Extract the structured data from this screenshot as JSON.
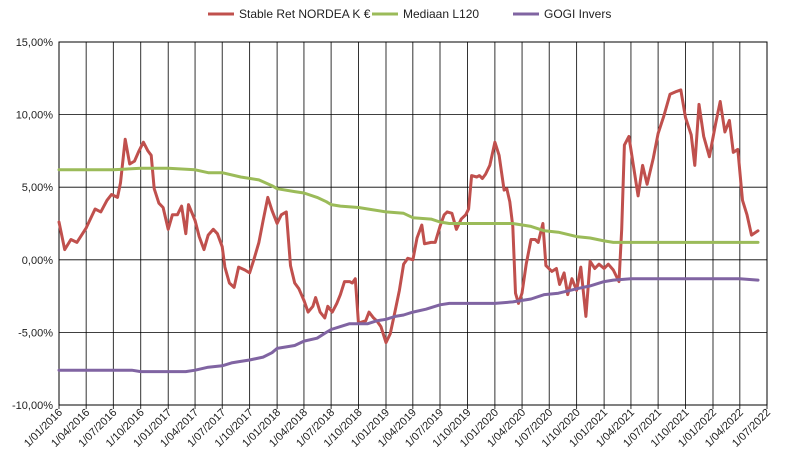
{
  "chart_data": {
    "type": "line",
    "title": "",
    "xlabel": "",
    "ylabel": "",
    "legend_position": "top",
    "grid": true,
    "ylim": [
      -10,
      15
    ],
    "yticks": [
      -10,
      -5,
      0,
      5,
      10,
      15
    ],
    "ytick_labels": [
      "-10,00%",
      "-5,00%",
      "0,00%",
      "5,00%",
      "10,00%",
      "15,00%"
    ],
    "xlim": [
      "2016-01-01",
      "2022-07-01"
    ],
    "xtick_labels": [
      "1/01/2016",
      "1/04/2016",
      "1/07/2016",
      "1/10/2016",
      "1/01/2017",
      "1/04/2017",
      "1/07/2017",
      "1/10/2017",
      "1/01/2018",
      "1/04/2018",
      "1/07/2018",
      "1/10/2018",
      "1/01/2019",
      "1/04/2019",
      "1/07/2019",
      "1/10/2019",
      "1/01/2020",
      "1/04/2020",
      "1/07/2020",
      "1/10/2020",
      "1/01/2021",
      "1/04/2021",
      "1/07/2021",
      "1/10/2021",
      "1/01/2022",
      "1/04/2022",
      "1/07/2022"
    ],
    "series": [
      {
        "name": "Stable Ret NORDEA K €",
        "color": "#c0504d",
        "points": [
          [
            "2016-01-01",
            2.6
          ],
          [
            "2016-01-20",
            0.7
          ],
          [
            "2016-02-10",
            1.4
          ],
          [
            "2016-03-01",
            1.2
          ],
          [
            "2016-04-01",
            2.2
          ],
          [
            "2016-05-01",
            3.5
          ],
          [
            "2016-05-20",
            3.3
          ],
          [
            "2016-06-10",
            4.1
          ],
          [
            "2016-06-25",
            4.5
          ],
          [
            "2016-07-15",
            4.3
          ],
          [
            "2016-07-25",
            5.3
          ],
          [
            "2016-08-10",
            8.3
          ],
          [
            "2016-08-25",
            6.6
          ],
          [
            "2016-09-10",
            6.8
          ],
          [
            "2016-09-25",
            7.5
          ],
          [
            "2016-10-10",
            8.1
          ],
          [
            "2016-10-25",
            7.5
          ],
          [
            "2016-11-05",
            7.2
          ],
          [
            "2016-11-15",
            4.9
          ],
          [
            "2016-12-01",
            3.9
          ],
          [
            "2016-12-15",
            3.6
          ],
          [
            "2017-01-01",
            2.1
          ],
          [
            "2017-01-15",
            3.1
          ],
          [
            "2017-02-01",
            3.1
          ],
          [
            "2017-02-15",
            3.7
          ],
          [
            "2017-03-01",
            1.8
          ],
          [
            "2017-03-10",
            3.8
          ],
          [
            "2017-04-01",
            2.7
          ],
          [
            "2017-04-15",
            1.6
          ],
          [
            "2017-05-01",
            0.7
          ],
          [
            "2017-05-15",
            1.7
          ],
          [
            "2017-06-01",
            2.1
          ],
          [
            "2017-06-15",
            1.8
          ],
          [
            "2017-07-01",
            0.9
          ],
          [
            "2017-07-10",
            -0.5
          ],
          [
            "2017-07-25",
            -1.6
          ],
          [
            "2017-08-10",
            -1.9
          ],
          [
            "2017-08-25",
            -0.5
          ],
          [
            "2017-09-15",
            -0.7
          ],
          [
            "2017-10-01",
            -0.9
          ],
          [
            "2017-10-15",
            0.0
          ],
          [
            "2017-11-01",
            1.2
          ],
          [
            "2017-11-15",
            2.7
          ],
          [
            "2017-12-01",
            4.3
          ],
          [
            "2017-12-15",
            3.4
          ],
          [
            "2018-01-01",
            2.5
          ],
          [
            "2018-01-15",
            3.1
          ],
          [
            "2018-02-01",
            3.3
          ],
          [
            "2018-02-15",
            -0.4
          ],
          [
            "2018-03-01",
            -1.6
          ],
          [
            "2018-03-15",
            -2.0
          ],
          [
            "2018-04-01",
            -2.8
          ],
          [
            "2018-04-15",
            -3.6
          ],
          [
            "2018-05-01",
            -3.2
          ],
          [
            "2018-05-10",
            -2.6
          ],
          [
            "2018-05-25",
            -3.6
          ],
          [
            "2018-06-10",
            -4.0
          ],
          [
            "2018-06-20",
            -3.2
          ],
          [
            "2018-07-05",
            -3.6
          ],
          [
            "2018-07-20",
            -3.0
          ],
          [
            "2018-08-01",
            -2.4
          ],
          [
            "2018-08-15",
            -1.5
          ],
          [
            "2018-09-01",
            -1.5
          ],
          [
            "2018-09-10",
            -1.6
          ],
          [
            "2018-09-20",
            -1.3
          ],
          [
            "2018-10-01",
            -4.4
          ],
          [
            "2018-10-10",
            -4.3
          ],
          [
            "2018-10-25",
            -4.2
          ],
          [
            "2018-11-05",
            -3.6
          ],
          [
            "2018-11-20",
            -4.0
          ],
          [
            "2018-12-01",
            -4.2
          ],
          [
            "2018-12-15",
            -4.6
          ],
          [
            "2019-01-01",
            -5.7
          ],
          [
            "2019-01-15",
            -5.1
          ],
          [
            "2019-02-01",
            -3.5
          ],
          [
            "2019-02-15",
            -2.1
          ],
          [
            "2019-03-01",
            -0.3
          ],
          [
            "2019-03-15",
            0.1
          ],
          [
            "2019-04-01",
            0.0
          ],
          [
            "2019-04-15",
            1.5
          ],
          [
            "2019-05-01",
            2.4
          ],
          [
            "2019-05-10",
            1.1
          ],
          [
            "2019-06-01",
            1.2
          ],
          [
            "2019-06-15",
            1.2
          ],
          [
            "2019-07-01",
            2.3
          ],
          [
            "2019-07-15",
            3.1
          ],
          [
            "2019-07-25",
            3.3
          ],
          [
            "2019-08-10",
            3.2
          ],
          [
            "2019-08-25",
            2.1
          ],
          [
            "2019-09-10",
            2.8
          ],
          [
            "2019-09-25",
            3.1
          ],
          [
            "2019-10-05",
            3.5
          ],
          [
            "2019-10-15",
            5.8
          ],
          [
            "2019-11-01",
            5.7
          ],
          [
            "2019-11-10",
            5.8
          ],
          [
            "2019-11-20",
            5.6
          ],
          [
            "2019-12-01",
            5.9
          ],
          [
            "2019-12-15",
            6.5
          ],
          [
            "2020-01-01",
            8.1
          ],
          [
            "2020-01-15",
            7.2
          ],
          [
            "2020-02-01",
            4.8
          ],
          [
            "2020-02-10",
            4.9
          ],
          [
            "2020-02-20",
            4.0
          ],
          [
            "2020-03-01",
            2.3
          ],
          [
            "2020-03-10",
            -2.3
          ],
          [
            "2020-03-20",
            -3.0
          ],
          [
            "2020-04-01",
            -2.3
          ],
          [
            "2020-04-15",
            -0.3
          ],
          [
            "2020-05-01",
            1.4
          ],
          [
            "2020-05-15",
            1.4
          ],
          [
            "2020-05-25",
            1.2
          ],
          [
            "2020-06-10",
            2.5
          ],
          [
            "2020-06-20",
            -0.4
          ],
          [
            "2020-07-10",
            -0.8
          ],
          [
            "2020-07-25",
            -0.6
          ],
          [
            "2020-08-05",
            -1.7
          ],
          [
            "2020-08-20",
            -0.9
          ],
          [
            "2020-09-01",
            -2.4
          ],
          [
            "2020-09-15",
            -1.3
          ],
          [
            "2020-10-01",
            -2.1
          ],
          [
            "2020-10-15",
            -0.5
          ],
          [
            "2020-11-01",
            -3.9
          ],
          [
            "2020-11-15",
            -0.1
          ],
          [
            "2020-12-01",
            -0.6
          ],
          [
            "2020-12-15",
            -0.3
          ],
          [
            "2021-01-01",
            -0.6
          ],
          [
            "2021-01-15",
            -0.3
          ],
          [
            "2021-02-01",
            -0.7
          ],
          [
            "2021-02-20",
            -1.5
          ],
          [
            "2021-03-01",
            2.1
          ],
          [
            "2021-03-10",
            7.9
          ],
          [
            "2021-03-25",
            8.5
          ],
          [
            "2021-04-10",
            6.4
          ],
          [
            "2021-04-25",
            4.4
          ],
          [
            "2021-05-10",
            6.5
          ],
          [
            "2021-05-25",
            5.2
          ],
          [
            "2021-06-15",
            7.0
          ],
          [
            "2021-07-01",
            8.7
          ],
          [
            "2021-07-20",
            9.9
          ],
          [
            "2021-08-10",
            11.4
          ],
          [
            "2021-09-01",
            11.6
          ],
          [
            "2021-09-15",
            11.7
          ],
          [
            "2021-10-01",
            9.8
          ],
          [
            "2021-10-20",
            8.6
          ],
          [
            "2021-11-01",
            6.5
          ],
          [
            "2021-11-15",
            10.7
          ],
          [
            "2021-12-01",
            8.5
          ],
          [
            "2021-12-20",
            7.1
          ],
          [
            "2022-01-10",
            9.4
          ],
          [
            "2022-01-25",
            10.9
          ],
          [
            "2022-02-10",
            8.8
          ],
          [
            "2022-02-25",
            9.6
          ],
          [
            "2022-03-10",
            7.4
          ],
          [
            "2022-03-25",
            7.6
          ],
          [
            "2022-04-10",
            4.1
          ],
          [
            "2022-04-25",
            3.1
          ],
          [
            "2022-05-10",
            1.7
          ],
          [
            "2022-06-01",
            2.0
          ]
        ]
      },
      {
        "name": "Mediaan L120",
        "color": "#9bbb59",
        "points": [
          [
            "2016-01-01",
            6.2
          ],
          [
            "2016-04-01",
            6.2
          ],
          [
            "2016-07-01",
            6.2
          ],
          [
            "2016-10-01",
            6.3
          ],
          [
            "2017-01-01",
            6.3
          ],
          [
            "2017-04-01",
            6.2
          ],
          [
            "2017-05-15",
            6.0
          ],
          [
            "2017-07-01",
            6.0
          ],
          [
            "2017-09-01",
            5.7
          ],
          [
            "2017-11-01",
            5.5
          ],
          [
            "2017-12-15",
            5.1
          ],
          [
            "2018-01-01",
            4.9
          ],
          [
            "2018-03-01",
            4.7
          ],
          [
            "2018-04-01",
            4.6
          ],
          [
            "2018-05-15",
            4.3
          ],
          [
            "2018-06-15",
            4.0
          ],
          [
            "2018-07-01",
            3.8
          ],
          [
            "2018-08-01",
            3.7
          ],
          [
            "2018-10-01",
            3.6
          ],
          [
            "2018-11-01",
            3.5
          ],
          [
            "2019-01-01",
            3.3
          ],
          [
            "2019-03-01",
            3.2
          ],
          [
            "2019-04-01",
            2.9
          ],
          [
            "2019-06-01",
            2.8
          ],
          [
            "2019-07-01",
            2.6
          ],
          [
            "2019-08-01",
            2.5
          ],
          [
            "2019-10-01",
            2.5
          ],
          [
            "2020-01-01",
            2.5
          ],
          [
            "2020-03-01",
            2.5
          ],
          [
            "2020-05-01",
            2.3
          ],
          [
            "2020-06-15",
            2.0
          ],
          [
            "2020-08-01",
            1.9
          ],
          [
            "2020-10-01",
            1.6
          ],
          [
            "2020-11-15",
            1.5
          ],
          [
            "2021-01-01",
            1.3
          ],
          [
            "2021-02-01",
            1.2
          ],
          [
            "2021-04-01",
            1.2
          ],
          [
            "2021-07-01",
            1.2
          ],
          [
            "2021-10-01",
            1.2
          ],
          [
            "2022-01-01",
            1.2
          ],
          [
            "2022-04-01",
            1.2
          ],
          [
            "2022-06-01",
            1.2
          ]
        ]
      },
      {
        "name": "GOGI Invers",
        "color": "#8064a2",
        "points": [
          [
            "2016-01-01",
            -7.6
          ],
          [
            "2016-04-01",
            -7.6
          ],
          [
            "2016-07-01",
            -7.6
          ],
          [
            "2016-09-01",
            -7.6
          ],
          [
            "2016-10-01",
            -7.7
          ],
          [
            "2017-01-01",
            -7.7
          ],
          [
            "2017-03-01",
            -7.7
          ],
          [
            "2017-04-01",
            -7.6
          ],
          [
            "2017-05-15",
            -7.4
          ],
          [
            "2017-07-01",
            -7.3
          ],
          [
            "2017-08-01",
            -7.1
          ],
          [
            "2017-09-01",
            -7.0
          ],
          [
            "2017-10-01",
            -6.9
          ],
          [
            "2017-11-15",
            -6.7
          ],
          [
            "2017-12-15",
            -6.4
          ],
          [
            "2018-01-01",
            -6.1
          ],
          [
            "2018-02-01",
            -6.0
          ],
          [
            "2018-03-01",
            -5.9
          ],
          [
            "2018-04-01",
            -5.6
          ],
          [
            "2018-05-15",
            -5.4
          ],
          [
            "2018-06-15",
            -5.0
          ],
          [
            "2018-07-01",
            -4.8
          ],
          [
            "2018-08-01",
            -4.6
          ],
          [
            "2018-09-01",
            -4.4
          ],
          [
            "2018-11-01",
            -4.4
          ],
          [
            "2018-12-01",
            -4.2
          ],
          [
            "2019-01-01",
            -4.1
          ],
          [
            "2019-02-01",
            -3.9
          ],
          [
            "2019-03-01",
            -3.8
          ],
          [
            "2019-04-01",
            -3.6
          ],
          [
            "2019-05-15",
            -3.4
          ],
          [
            "2019-07-01",
            -3.1
          ],
          [
            "2019-08-01",
            -3.0
          ],
          [
            "2019-10-01",
            -3.0
          ],
          [
            "2020-01-01",
            -3.0
          ],
          [
            "2020-03-01",
            -2.9
          ],
          [
            "2020-05-01",
            -2.7
          ],
          [
            "2020-06-15",
            -2.4
          ],
          [
            "2020-08-01",
            -2.3
          ],
          [
            "2020-10-01",
            -2.0
          ],
          [
            "2020-11-15",
            -1.8
          ],
          [
            "2021-01-01",
            -1.5
          ],
          [
            "2021-02-01",
            -1.4
          ],
          [
            "2021-04-01",
            -1.3
          ],
          [
            "2021-07-01",
            -1.3
          ],
          [
            "2021-10-01",
            -1.3
          ],
          [
            "2022-01-01",
            -1.3
          ],
          [
            "2022-04-01",
            -1.3
          ],
          [
            "2022-06-01",
            -1.4
          ]
        ]
      }
    ]
  }
}
